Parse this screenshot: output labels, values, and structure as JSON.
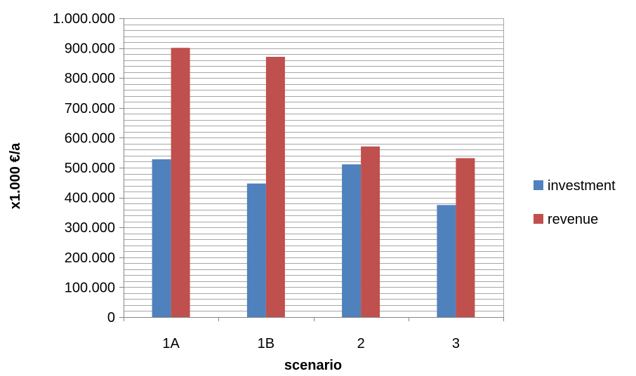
{
  "chart_data": {
    "type": "bar",
    "title": "",
    "xlabel": "scenario",
    "ylabel": "x1.000 €/a",
    "categories": [
      "1A",
      "1B",
      "2",
      "3"
    ],
    "series": [
      {
        "name": "investment",
        "color": "#4f81bd",
        "values": [
          528000,
          447000,
          511000,
          375000
        ]
      },
      {
        "name": "revenue",
        "color": "#c0504d",
        "values": [
          901000,
          871000,
          571000,
          532000
        ]
      }
    ],
    "ylim": [
      0,
      1000000
    ],
    "y_ticks": [
      "0",
      "100.000",
      "200.000",
      "300.000",
      "400.000",
      "500.000",
      "600.000",
      "700.000",
      "800.000",
      "900.000",
      "1.000.000"
    ],
    "y_tick_values": [
      0,
      100000,
      200000,
      300000,
      400000,
      500000,
      600000,
      700000,
      800000,
      900000,
      1000000
    ],
    "minor_gridline_step": 20000,
    "grid": true,
    "legend_position": "right",
    "gridline_color": "#a6a6a6",
    "axis_color": "#868686"
  }
}
